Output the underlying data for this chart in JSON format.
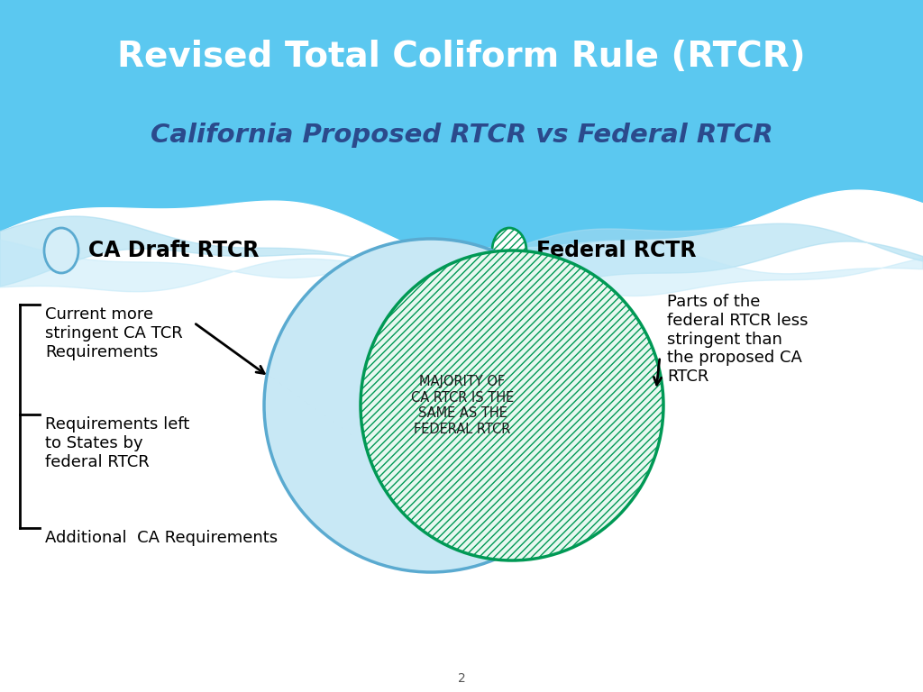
{
  "title": "Revised Total Coliform Rule (RTCR)",
  "subtitle": "California Proposed RTCR vs Federal RTCR",
  "header_bg_color": "#5BC8F0",
  "header_title_color": "#FFFFFF",
  "header_subtitle_color": "#2B4A8C",
  "bg_color": "#FFFFFF",
  "ca_circle_facecolor": "#C8E8F5",
  "ca_circle_edge": "#5AAAD0",
  "federal_circle_edge": "#009955",
  "federal_circle_face": "#FFFFFF",
  "federal_hatch_color": "#00AA66",
  "legend_ca_label": "CA Draft RTCR",
  "legend_fed_label": "Federal RCTR",
  "center_text": "MAJORITY OF\nCA RTCR IS THE\nSAME AS THE\nFEDERAL RTCR",
  "center_text_color": "#1a1a1a",
  "left_annotations": [
    "Current more\nstringent CA TCR\nRequirements",
    "Requirements left\nto States by\nfederal RTCR",
    "Additional  CA Requirements"
  ],
  "right_annotation": "Parts of the\nfederal RTCR less\nstringent than\nthe proposed CA\nRTCR",
  "page_num": "2"
}
